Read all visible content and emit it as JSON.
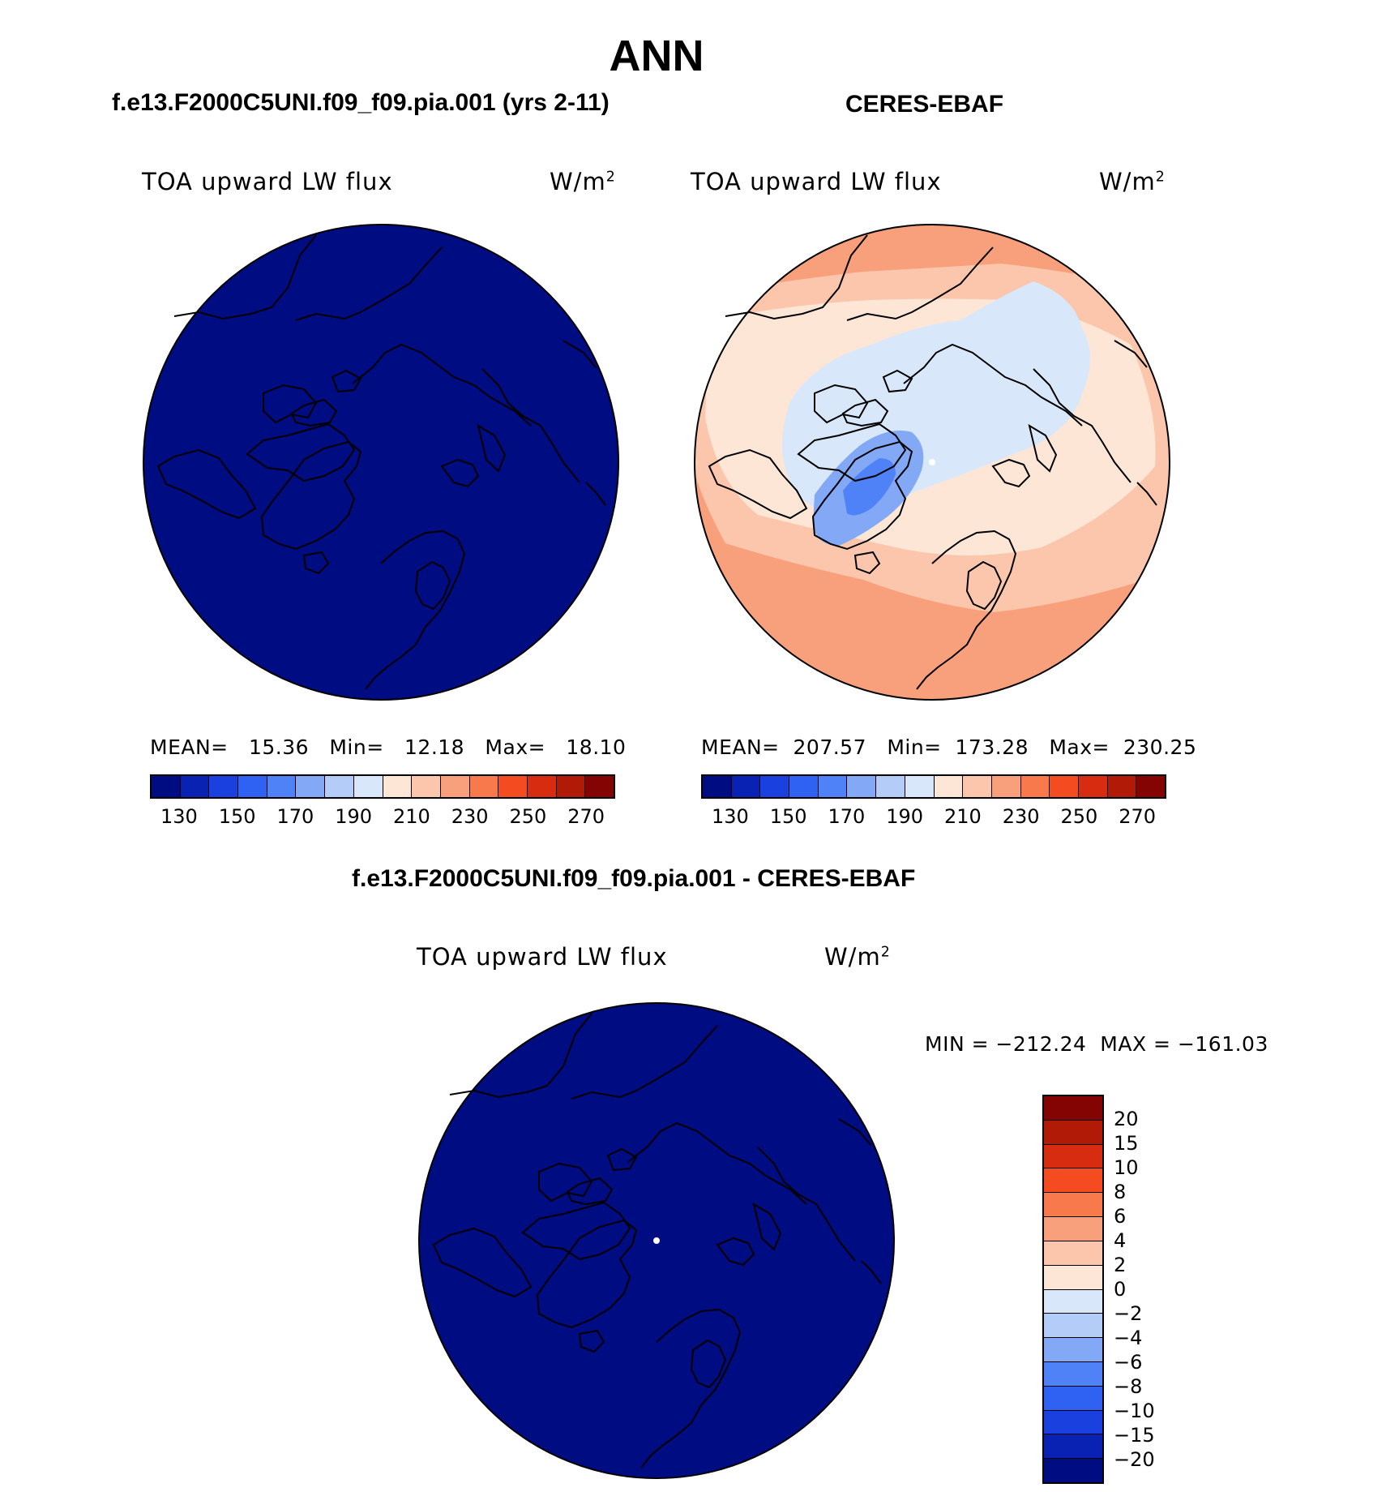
{
  "title": "ANN",
  "panels": {
    "model": {
      "case": "f.e13.F2000C5UNI.f09_f09.pia.001 (yrs 2-11)",
      "variable": "TOA upward LW flux",
      "units_base": "W/m",
      "units_exp": "2",
      "stats": "MEAN=   15.36   Min=   12.18   Max=   18.10"
    },
    "obs": {
      "case": "CERES-EBAF",
      "variable": "TOA upward LW flux",
      "units_base": "W/m",
      "units_exp": "2",
      "stats": "MEAN=  207.57   Min=  173.28   Max=  230.25"
    },
    "diff": {
      "case": "f.e13.F2000C5UNI.f09_f09.pia.001 - CERES-EBAF",
      "variable": "TOA upward LW flux",
      "units_base": "W/m",
      "units_exp": "2",
      "stats": "MIN = −212.24  MAX = −161.03"
    }
  },
  "colorbars": {
    "main": {
      "colors": [
        "#000d82",
        "#0a22b4",
        "#1a40e0",
        "#2f62f2",
        "#4f82f6",
        "#82a8f6",
        "#b4ccf8",
        "#d8e8fa",
        "#fde6d6",
        "#fbc6ac",
        "#f8a07c",
        "#f87a4c",
        "#f44c20",
        "#d82c10",
        "#b21a08",
        "#840404"
      ],
      "labels": [
        "130",
        "150",
        "170",
        "190",
        "210",
        "230",
        "250",
        "270"
      ]
    },
    "diff": {
      "colors": [
        "#840404",
        "#b21a08",
        "#d82c10",
        "#f44c20",
        "#f87a4c",
        "#f8a07c",
        "#fbc6ac",
        "#fde6d6",
        "#d8e8fa",
        "#b4ccf8",
        "#82a8f6",
        "#4f82f6",
        "#2f62f2",
        "#1a40e0",
        "#0a22b4",
        "#000d82"
      ],
      "labels": [
        "20",
        "15",
        "10",
        "8",
        "6",
        "4",
        "2",
        "0",
        "−2",
        "−4",
        "−6",
        "−8",
        "−10",
        "−15",
        "−20"
      ]
    }
  },
  "map_colors": {
    "model_fill": "#000d82",
    "diff_fill": "#000d82",
    "obs_ring_outer": "#f8a07c",
    "obs_ring_mid": "#fbc6ac",
    "obs_ring_inner": "#fde6d6",
    "obs_arctic": "#d8e8fa",
    "obs_greenland": "#82a8f6",
    "obs_greenland_core": "#4f82f6"
  }
}
